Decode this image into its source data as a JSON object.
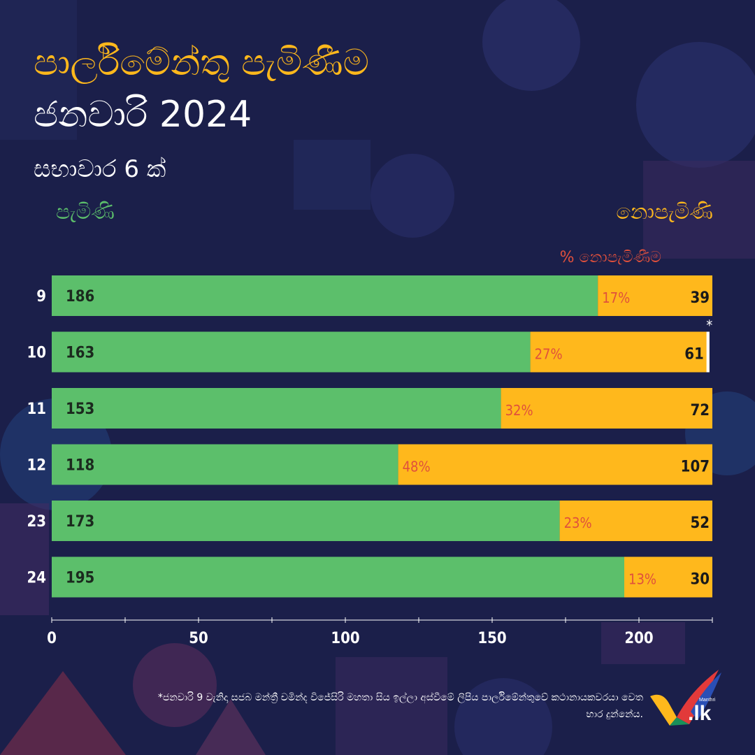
{
  "header": {
    "title_line1": "පාර්ලිමේන්තු පැමිණීම",
    "title_line2": "ජනවාරි 2024",
    "subtitle": "සභාවාර 6 ක්",
    "legend_present": "පැමිණි",
    "legend_absent": "නොපැමිණි",
    "pct_header": "% නොපැමිණීම"
  },
  "colors": {
    "background": "#1b1f4a",
    "title_accent": "#ffb81c",
    "present": "#5cbf6b",
    "absent": "#ffb81c",
    "percent_text": "#e0503c"
  },
  "chart_data": {
    "type": "bar",
    "orientation": "horizontal",
    "stacked": true,
    "categories": [
      "9",
      "10",
      "11",
      "12",
      "23",
      "24"
    ],
    "series": [
      {
        "name": "පැමිණි",
        "values": [
          186,
          163,
          153,
          118,
          173,
          195
        ]
      },
      {
        "name": "නොපැමිණි",
        "values": [
          39,
          61,
          72,
          107,
          52,
          30
        ]
      }
    ],
    "absent_percent_labels": [
      "17%",
      "27%",
      "32%",
      "48%",
      "23%",
      "13%"
    ],
    "markers": [
      {
        "category": "10",
        "label": "*",
        "value": 1
      }
    ],
    "x_ticks": [
      "0",
      "50",
      "100",
      "150",
      "200"
    ],
    "xlim": [
      0,
      225
    ],
    "grid": false,
    "legend": "top"
  },
  "footnote": "*ජනවාරි 9 වැනිදා සජබ මන්ත්‍රී චමින්ද විජේසිරි මහතා සිය ඉල්ලා අස්වීමේ ලිපිය පාර්ලිමේන්තුවේ කථානායකවරයා වෙත භාර දුන්නේය.",
  "logo": {
    "text": ".lk",
    "small_text": "Manthri"
  }
}
